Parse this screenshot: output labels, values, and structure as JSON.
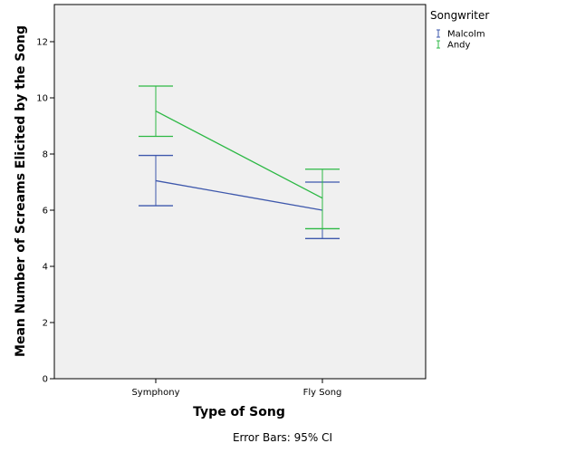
{
  "chart_data": {
    "type": "line",
    "xlabel": "Type of Song",
    "ylabel": "Mean Number of Screams Elicited by the Song",
    "categories": [
      "Symphony",
      "Fly Song"
    ],
    "ylim": [
      0,
      13.3
    ],
    "yticks": [
      0,
      2,
      4,
      6,
      8,
      10,
      12
    ],
    "grid": false,
    "legend_title": "Songwriter",
    "legend_position": "right",
    "footnote": "Error Bars: 95% CI",
    "series": [
      {
        "name": "Malcolm",
        "color": "#3e58ac",
        "values": [
          7.05,
          6.0
        ],
        "ci_lower": [
          6.16,
          4.99
        ],
        "ci_upper": [
          7.95,
          7.0
        ]
      },
      {
        "name": "Andy",
        "color": "#2cb844",
        "values": [
          9.53,
          6.43
        ],
        "ci_lower": [
          8.63,
          5.34
        ],
        "ci_upper": [
          10.42,
          7.46
        ]
      }
    ]
  }
}
